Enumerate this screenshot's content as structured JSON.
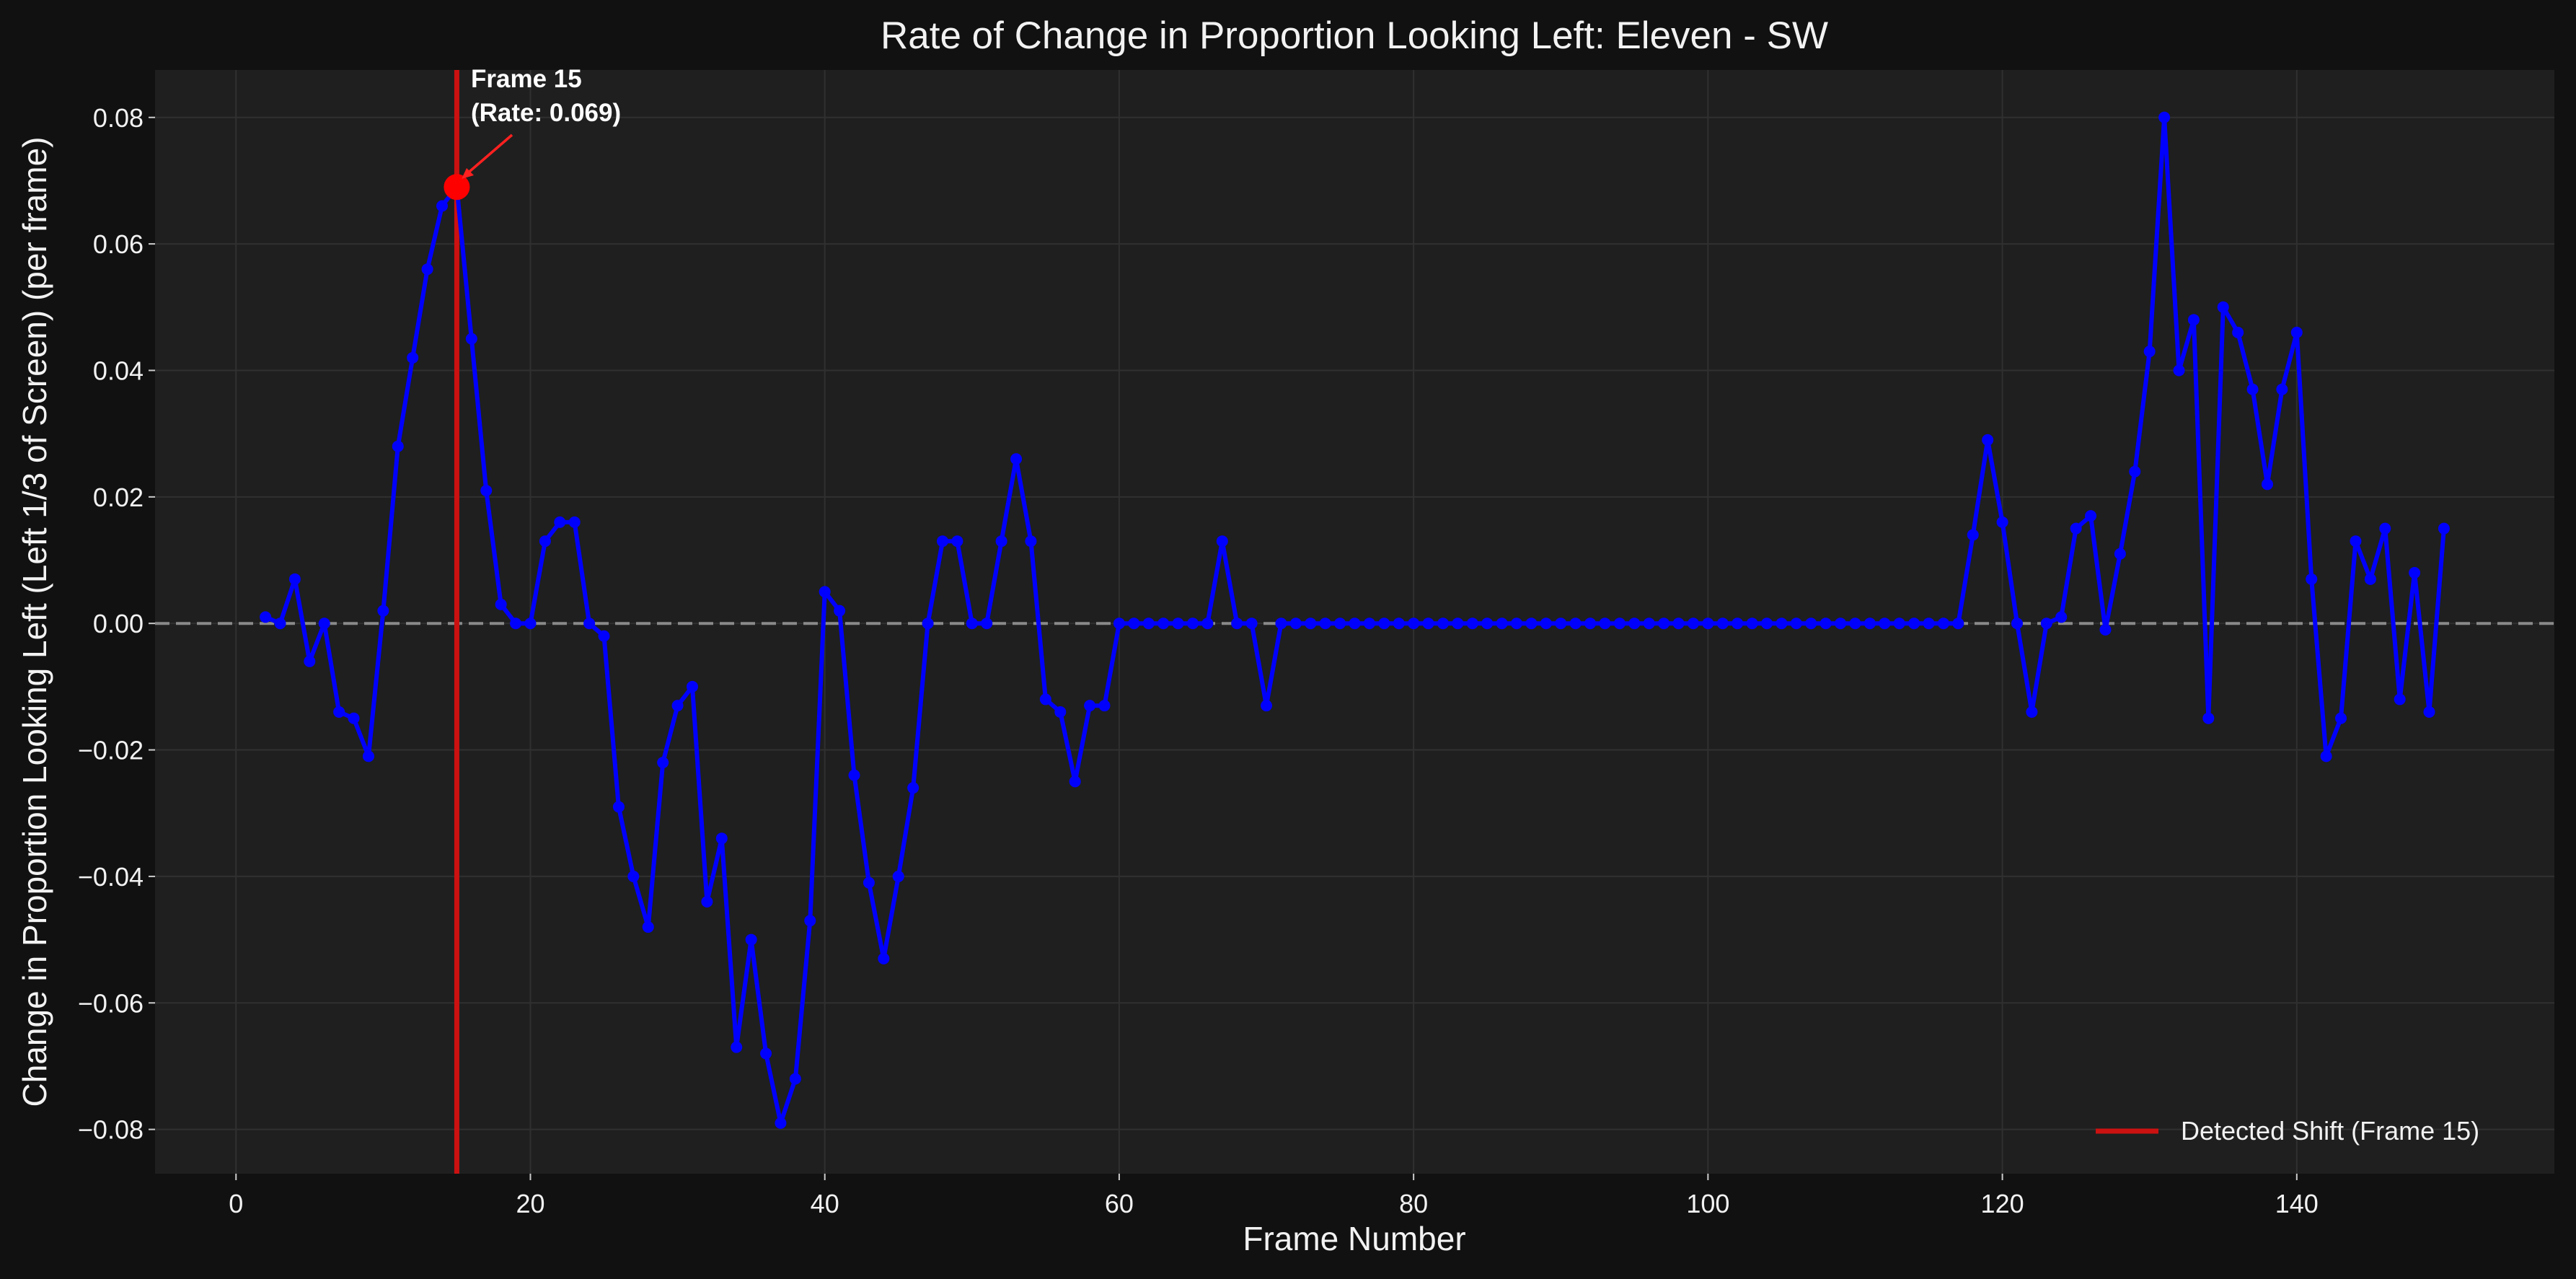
{
  "chart_data": {
    "type": "line",
    "title": "Rate of Change in Proportion Looking Left: Eleven - SW",
    "xlabel": "Frame Number",
    "ylabel": "Change in Proportion Looking Left (Left 1/3 of Screen) (per frame)",
    "xlim": [
      -5.5,
      157.5
    ],
    "ylim": [
      -0.087,
      0.0875
    ],
    "xticks": [
      0,
      20,
      40,
      60,
      80,
      100,
      120,
      140
    ],
    "xtick_labels": [
      "0",
      "20",
      "40",
      "60",
      "80",
      "100",
      "120",
      "140"
    ],
    "yticks": [
      -0.08,
      -0.06,
      -0.04,
      -0.02,
      0.0,
      0.02,
      0.04,
      0.06,
      0.08
    ],
    "ytick_labels": [
      "−0.08",
      "−0.06",
      "−0.04",
      "−0.02",
      "0.00",
      "0.02",
      "0.04",
      "0.06",
      "0.08"
    ],
    "grid": true,
    "zero_line": 0,
    "series": [
      {
        "color": "#0000ff",
        "x": [
          2,
          3,
          4,
          5,
          6,
          7,
          8,
          9,
          10,
          11,
          12,
          13,
          14,
          15,
          16,
          17,
          18,
          19,
          20,
          21,
          22,
          23,
          24,
          25,
          26,
          27,
          28,
          29,
          30,
          31,
          32,
          33,
          34,
          35,
          36,
          37,
          38,
          39,
          40,
          41,
          42,
          43,
          44,
          45,
          46,
          47,
          48,
          49,
          50,
          51,
          52,
          53,
          54,
          55,
          56,
          57,
          58,
          59,
          60,
          61,
          62,
          63,
          64,
          65,
          66,
          67,
          68,
          69,
          70,
          71,
          72,
          73,
          74,
          75,
          76,
          77,
          78,
          79,
          80,
          81,
          82,
          83,
          84,
          85,
          86,
          87,
          88,
          89,
          90,
          91,
          92,
          93,
          94,
          95,
          96,
          97,
          98,
          99,
          100,
          101,
          102,
          103,
          104,
          105,
          106,
          107,
          108,
          109,
          110,
          111,
          112,
          113,
          114,
          115,
          116,
          117,
          118,
          119,
          120,
          121,
          122,
          123,
          124,
          125,
          126,
          127,
          128,
          129,
          130,
          131,
          132,
          133,
          134,
          135,
          136,
          137,
          138,
          139,
          140,
          141,
          142,
          143,
          144,
          145,
          146,
          147,
          148,
          149,
          150
        ],
        "y": [
          0.001,
          0.0,
          0.007,
          -0.006,
          0.0,
          -0.014,
          -0.015,
          -0.021,
          0.002,
          0.028,
          0.042,
          0.056,
          0.066,
          0.069,
          0.045,
          0.021,
          0.003,
          0.0,
          0.0,
          0.013,
          0.016,
          0.016,
          0.0,
          -0.002,
          -0.029,
          -0.04,
          -0.048,
          -0.022,
          -0.013,
          -0.01,
          -0.044,
          -0.034,
          -0.067,
          -0.05,
          -0.068,
          -0.079,
          -0.072,
          -0.047,
          0.005,
          0.002,
          -0.024,
          -0.041,
          -0.053,
          -0.04,
          -0.026,
          0.0,
          0.013,
          0.013,
          0.0,
          0.0,
          0.013,
          0.026,
          0.013,
          -0.012,
          -0.014,
          -0.025,
          -0.013,
          -0.013,
          0.0,
          0.0,
          0.0,
          0.0,
          0.0,
          0.0,
          0.0,
          0.013,
          0.0,
          0.0,
          -0.013,
          0.0,
          0.0,
          0.0,
          0.0,
          0.0,
          0.0,
          0.0,
          0.0,
          0.0,
          0.0,
          0.0,
          0.0,
          0.0,
          0.0,
          0.0,
          0.0,
          0.0,
          0.0,
          0.0,
          0.0,
          0.0,
          0.0,
          0.0,
          0.0,
          0.0,
          0.0,
          0.0,
          0.0,
          0.0,
          0.0,
          0.0,
          0.0,
          0.0,
          0.0,
          0.0,
          0.0,
          0.0,
          0.0,
          0.0,
          0.0,
          0.0,
          0.0,
          0.0,
          0.0,
          0.0,
          0.0,
          0.0,
          0.014,
          0.029,
          0.016,
          0.0,
          -0.014,
          0.0,
          0.001,
          0.015,
          0.017,
          -0.001,
          0.011,
          0.024,
          0.043,
          0.08,
          0.04,
          0.048,
          -0.015,
          0.05,
          0.046,
          0.037,
          0.022,
          0.037,
          0.046,
          0.007,
          -0.021,
          -0.015,
          0.013,
          0.007,
          0.015,
          -0.012,
          0.008,
          -0.014,
          0.015
        ]
      }
    ],
    "highlight": {
      "x": 15,
      "y": 0.069,
      "color": "#ff0000",
      "label_line1": "Frame 15",
      "label_line2": "(Rate: 0.069)"
    },
    "shift_line": {
      "x": 15,
      "color": "#cc1111",
      "legend_label": "Detected Shift (Frame 15)"
    },
    "legend_position": "lower-right"
  }
}
